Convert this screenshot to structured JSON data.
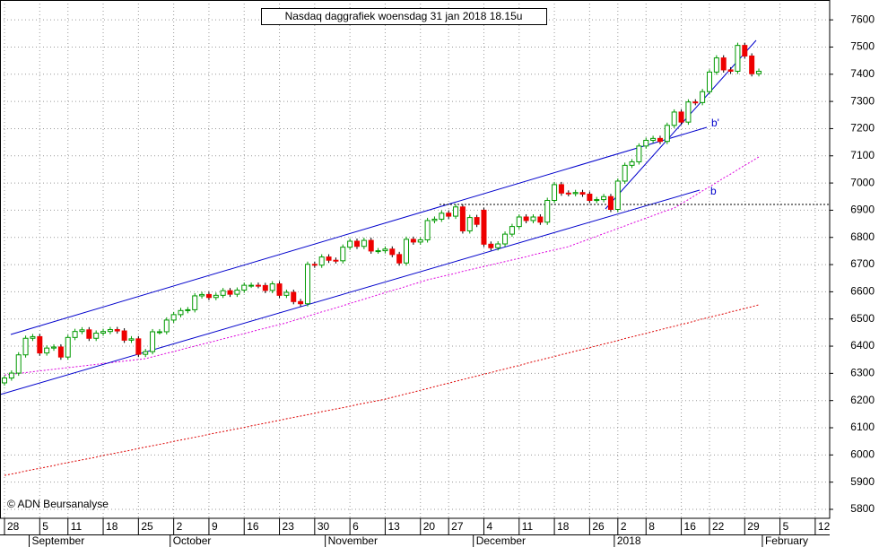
{
  "chart_data": {
    "type": "candlestick",
    "title": "Nasdaq daggrafiek woensdag 31 jan 2018 18.15u",
    "copyright": "© ADN Beursanalyse",
    "trend_labels": [
      "b'",
      "b"
    ],
    "categories": [
      "28",
      null,
      null,
      null,
      null,
      "5",
      null,
      null,
      null,
      "11",
      null,
      null,
      null,
      null,
      "18",
      null,
      null,
      null,
      null,
      "25",
      null,
      null,
      null,
      null,
      "2",
      null,
      null,
      null,
      null,
      "9",
      null,
      null,
      null,
      null,
      "16",
      null,
      null,
      null,
      null,
      "23",
      null,
      null,
      null,
      null,
      "30",
      null,
      null,
      null,
      null,
      "6",
      null,
      null,
      null,
      null,
      "13",
      null,
      null,
      null,
      null,
      "20",
      null,
      null,
      null,
      "27",
      null,
      null,
      null,
      null,
      "4",
      null,
      null,
      null,
      null,
      "11",
      null,
      null,
      null,
      null,
      "18",
      null,
      null,
      null,
      null,
      "26",
      null,
      null,
      null,
      "2",
      null,
      null,
      null,
      "8",
      null,
      null,
      null,
      null,
      "16",
      null,
      null,
      null,
      "22",
      null,
      null,
      null,
      null,
      "29",
      null,
      null,
      null,
      null,
      "5",
      null,
      null,
      null,
      null,
      "12",
      null
    ],
    "month_labels": [
      "September",
      "October",
      "November",
      "December",
      "2018",
      "February"
    ],
    "open": [
      6265,
      6283,
      6301,
      6368,
      6429,
      6435,
      6375,
      6393,
      6397,
      6360,
      6432,
      6454,
      6460,
      6429,
      6448,
      6454,
      6461,
      6456,
      6422,
      6427,
      6370,
      6380,
      6453,
      6453,
      6496,
      6516,
      6531,
      6534,
      6585,
      6590,
      6579,
      6587,
      6604,
      6591,
      6606,
      6624,
      6624,
      6623,
      6605,
      6629,
      6587,
      6598,
      6564,
      6556,
      6701,
      6698,
      6728,
      6716,
      6714,
      6764,
      6786,
      6767,
      6789,
      6750,
      6751,
      6757,
      6737,
      6706,
      6793,
      6783,
      6791,
      6862,
      6867,
      6889,
      6878,
      6912,
      6824,
      6873,
      6900,
      6775,
      6762,
      6776,
      6812,
      6840,
      6875,
      6862,
      6875,
      6856,
      6936,
      6994,
      6963,
      6961,
      6965,
      6959,
      6936,
      6939,
      6950,
      6903,
      7007,
      7065,
      7078,
      7136,
      7157,
      7164,
      7153,
      7212,
      7261,
      7224,
      7298,
      7296,
      7336,
      7408,
      7460,
      7416,
      7411,
      7506,
      7467,
      7402,
      null,
      null,
      null,
      null,
      null,
      null,
      null,
      null,
      null
    ],
    "high": [
      6293,
      6311,
      6378,
      6439,
      6445,
      6445,
      6403,
      6407,
      6407,
      6442,
      6464,
      6470,
      6470,
      6458,
      6464,
      6471,
      6471,
      6466,
      6437,
      6437,
      6390,
      6463,
      6463,
      6506,
      6526,
      6541,
      6544,
      6595,
      6600,
      6600,
      6597,
      6614,
      6614,
      6616,
      6634,
      6634,
      6634,
      6633,
      6639,
      6639,
      6608,
      6608,
      6574,
      6711,
      6711,
      6738,
      6738,
      6726,
      6774,
      6796,
      6796,
      6799,
      6799,
      6761,
      6767,
      6767,
      6747,
      6803,
      6803,
      6801,
      6872,
      6877,
      6899,
      6899,
      6922,
      6922,
      6883,
      6883,
      6910,
      6785,
      6786,
      6822,
      6850,
      6885,
      6885,
      6885,
      6885,
      6946,
      7004,
      7004,
      6973,
      6975,
      6975,
      6969,
      6949,
      6960,
      6960,
      7017,
      7075,
      7088,
      7146,
      7167,
      7174,
      7174,
      7222,
      7271,
      7271,
      7308,
      7308,
      7346,
      7418,
      7470,
      7470,
      7426,
      7516,
      7516,
      7477,
      7421,
      null,
      null,
      null,
      null,
      null,
      null,
      null,
      null,
      null
    ],
    "low": [
      6255,
      6273,
      6291,
      6358,
      6419,
      6365,
      6365,
      6383,
      6350,
      6350,
      6422,
      6444,
      6419,
      6419,
      6438,
      6444,
      6446,
      6412,
      6412,
      6360,
      6360,
      6370,
      6443,
      6443,
      6486,
      6506,
      6521,
      6524,
      6575,
      6569,
      6569,
      6577,
      6581,
      6581,
      6596,
      6614,
      6613,
      6595,
      6595,
      6577,
      6577,
      6554,
      6546,
      6546,
      6688,
      6688,
      6706,
      6704,
      6704,
      6754,
      6757,
      6757,
      6740,
      6740,
      6741,
      6727,
      6696,
      6696,
      6773,
      6773,
      6781,
      6852,
      6857,
      6868,
      6868,
      6814,
      6814,
      6838,
      6765,
      6752,
      6752,
      6766,
      6802,
      6830,
      6852,
      6852,
      6846,
      6846,
      6926,
      6953,
      6951,
      6951,
      6949,
      6926,
      6926,
      6929,
      6893,
      6893,
      6997,
      7055,
      7068,
      7126,
      7147,
      7143,
      7143,
      7202,
      7214,
      7214,
      7286,
      7286,
      7326,
      7398,
      7406,
      7401,
      7401,
      7457,
      7392,
      7392,
      null,
      null,
      null,
      null,
      null,
      null,
      null,
      null,
      null
    ],
    "close": [
      6283,
      6301,
      6368,
      6429,
      6435,
      6375,
      6393,
      6397,
      6360,
      6432,
      6454,
      6460,
      6429,
      6448,
      6454,
      6461,
      6456,
      6422,
      6427,
      6370,
      6380,
      6453,
      6453,
      6496,
      6516,
      6531,
      6534,
      6585,
      6590,
      6579,
      6587,
      6604,
      6591,
      6606,
      6624,
      6624,
      6623,
      6605,
      6629,
      6587,
      6598,
      6564,
      6556,
      6701,
      6698,
      6728,
      6716,
      6714,
      6764,
      6786,
      6767,
      6789,
      6750,
      6751,
      6757,
      6737,
      6706,
      6793,
      6783,
      6791,
      6862,
      6867,
      6889,
      6878,
      6912,
      6824,
      6873,
      6848,
      6775,
      6762,
      6776,
      6812,
      6840,
      6875,
      6862,
      6875,
      6856,
      6936,
      6994,
      6963,
      6961,
      6965,
      6959,
      6936,
      6939,
      6950,
      6903,
      7007,
      7065,
      7078,
      7136,
      7157,
      7164,
      7153,
      7212,
      7261,
      7224,
      7298,
      7296,
      7336,
      7408,
      7460,
      7416,
      7411,
      7506,
      7467,
      7402,
      7411,
      null,
      null,
      null,
      null,
      null,
      null,
      null,
      null,
      null
    ],
    "up_color": "#009900",
    "down_color": "#ee0000",
    "overlays": [
      {
        "color": "#dd00dd",
        "values": [
          6294,
          6297,
          6300,
          6303,
          6306,
          6309,
          6312,
          6315,
          6318,
          6321,
          6324,
          6327,
          6330,
          6333,
          6336,
          6339,
          6342,
          6345,
          6348,
          6351,
          6354,
          6361,
          6367,
          6374,
          6380,
          6387,
          6394,
          6400,
          6407,
          6413,
          6420,
          6427,
          6433,
          6440,
          6446,
          6453,
          6460,
          6466,
          6473,
          6479,
          6486,
          6494,
          6502,
          6510,
          6518,
          6526,
          6533,
          6541,
          6549,
          6557,
          6565,
          6573,
          6581,
          6589,
          6597,
          6605,
          6612,
          6620,
          6628,
          6636,
          6644,
          6650,
          6656,
          6662,
          6668,
          6675,
          6681,
          6687,
          6693,
          6699,
          6705,
          6711,
          6717,
          6723,
          6729,
          6736,
          6742,
          6748,
          6754,
          6760,
          6766,
          6776,
          6785,
          6795,
          6804,
          6814,
          6823,
          6833,
          6842,
          6852,
          6861,
          6871,
          6880,
          6890,
          6899,
          6908,
          6924,
          6939,
          6955,
          6971,
          6986,
          7002,
          7018,
          7033,
          7049,
          7065,
          7080,
          7096,
          null,
          null,
          null,
          null,
          null,
          null,
          null,
          null,
          null
        ]
      },
      {
        "color": "#dd0000",
        "values": [
          5925,
          5930,
          5935,
          5941,
          5946,
          5951,
          5956,
          5961,
          5967,
          5972,
          5977,
          5982,
          5987,
          5992,
          5998,
          6003,
          6008,
          6013,
          6018,
          6024,
          6029,
          6034,
          6039,
          6044,
          6050,
          6055,
          6060,
          6065,
          6070,
          6076,
          6081,
          6086,
          6091,
          6096,
          6101,
          6107,
          6112,
          6117,
          6122,
          6127,
          6133,
          6138,
          6143,
          6148,
          6153,
          6159,
          6164,
          6169,
          6174,
          6179,
          6185,
          6190,
          6195,
          6200,
          6205,
          6212,
          6218,
          6225,
          6231,
          6238,
          6244,
          6251,
          6258,
          6264,
          6271,
          6277,
          6284,
          6290,
          6297,
          6303,
          6310,
          6316,
          6323,
          6329,
          6336,
          6343,
          6349,
          6356,
          6362,
          6369,
          6375,
          6382,
          6388,
          6395,
          6401,
          6408,
          6414,
          6421,
          6428,
          6434,
          6441,
          6447,
          6454,
          6460,
          6467,
          6473,
          6480,
          6486,
          6493,
          6500,
          6506,
          6513,
          6519,
          6526,
          6532,
          6539,
          6545,
          6552,
          null,
          null,
          null,
          null,
          null,
          null,
          null,
          null,
          null
        ]
      }
    ],
    "ylim": [
      5767,
      7673
    ],
    "yticks": [
      5800,
      5900,
      6000,
      6100,
      6200,
      6300,
      6400,
      6500,
      6600,
      6700,
      6800,
      6900,
      7000,
      7100,
      7200,
      7300,
      7400,
      7500,
      7600
    ],
    "grid": true
  }
}
